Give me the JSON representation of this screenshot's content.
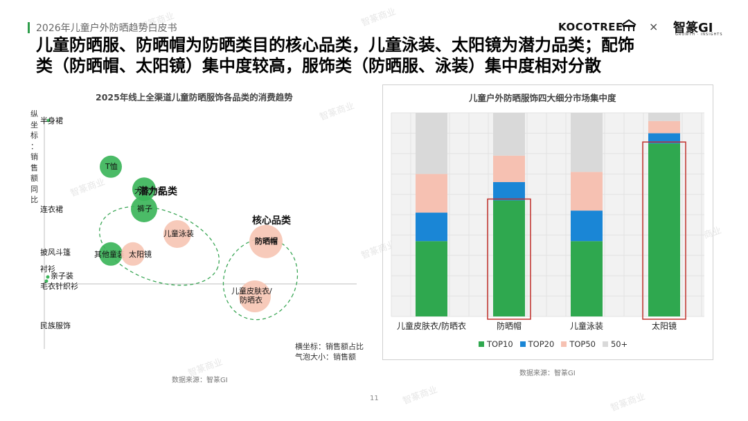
{
  "header": {
    "doc_title": "2026年儿童户外防晒趋势白皮书",
    "logo_left": "KOCOTREE",
    "logo_separator": "×",
    "logo_right": "智篆GI",
    "logo_right_sub": "GROWTH · INSIGHTS"
  },
  "headline": {
    "line1": "儿童防晒服、防晒帽为防晒类目的核心品类，儿童泳装、太阳镜为潜力品类；配饰",
    "line2": "类（防晒帽、太阳镜）集中度较高，服饰类（防晒服、泳装）集中度相对分散"
  },
  "chart_data": [
    {
      "type": "scatter",
      "title": "2025年线上全渠道儿童防晒服饰各品类的消费趋势",
      "ylabel": "纵坐标：销售额同比",
      "xlabel": "横坐标：销售额占比",
      "size_label": "气泡大小：销售额",
      "y_axis_categories": [
        "半身裙",
        "连衣裙",
        "披风斗篷",
        "衬衫",
        "亲子装",
        "毛衣针织衫",
        "民族服饰"
      ],
      "groups": [
        {
          "name": "潜力品类"
        },
        {
          "name": "核心品类"
        }
      ],
      "points": [
        {
          "label": "T恤",
          "x": 0.06,
          "y": 0.47,
          "size": 0.4,
          "color": "#3cb55a"
        },
        {
          "label": "大衣外套",
          "x": 0.09,
          "y": 0.38,
          "size": 0.45,
          "color": "#3cb55a"
        },
        {
          "label": "裤子",
          "x": 0.09,
          "y": 0.3,
          "size": 0.55,
          "color": "#3cb55a"
        },
        {
          "label": "其他童装",
          "x": 0.06,
          "y": 0.12,
          "size": 0.45,
          "color": "#3cb55a"
        },
        {
          "label": "太阳镜",
          "x": 0.08,
          "y": 0.12,
          "size": 0.45,
          "color": "#f6c5b4"
        },
        {
          "label": "儿童泳装",
          "x": 0.12,
          "y": 0.2,
          "size": 0.6,
          "color": "#f6c5b4"
        },
        {
          "label": "防晒帽",
          "x": 0.2,
          "y": 0.17,
          "size": 0.8,
          "color": "#f6c5b4"
        },
        {
          "label": "儿童皮肤衣/防晒衣",
          "x": 0.19,
          "y": -0.05,
          "size": 0.75,
          "color": "#f6c5b4"
        }
      ],
      "source": "数据来源：智篆GI"
    },
    {
      "type": "bar",
      "stacked": true,
      "title": "儿童户外防晒服饰四大细分市场集中度",
      "categories": [
        "儿童皮肤衣/防晒衣",
        "防晒帽",
        "儿童泳装",
        "太阳镜"
      ],
      "ylim": [
        0,
        100
      ],
      "series": [
        {
          "name": "TOP10",
          "color": "#2fa84f",
          "values": [
            37,
            57,
            37,
            85
          ]
        },
        {
          "name": "TOP20",
          "color": "#1a86d6",
          "values": [
            14,
            9,
            15,
            5
          ]
        },
        {
          "name": "TOP50",
          "color": "#f6c1b2",
          "values": [
            19,
            13,
            19,
            6
          ]
        },
        {
          "name": "50+",
          "color": "#d9d9d9",
          "values": [
            30,
            21,
            29,
            4
          ]
        }
      ],
      "highlight": [
        "防晒帽",
        "太阳镜"
      ],
      "source": "数据来源：智篆GI"
    }
  ],
  "page_number": "11",
  "watermark_text": "智篆商业"
}
